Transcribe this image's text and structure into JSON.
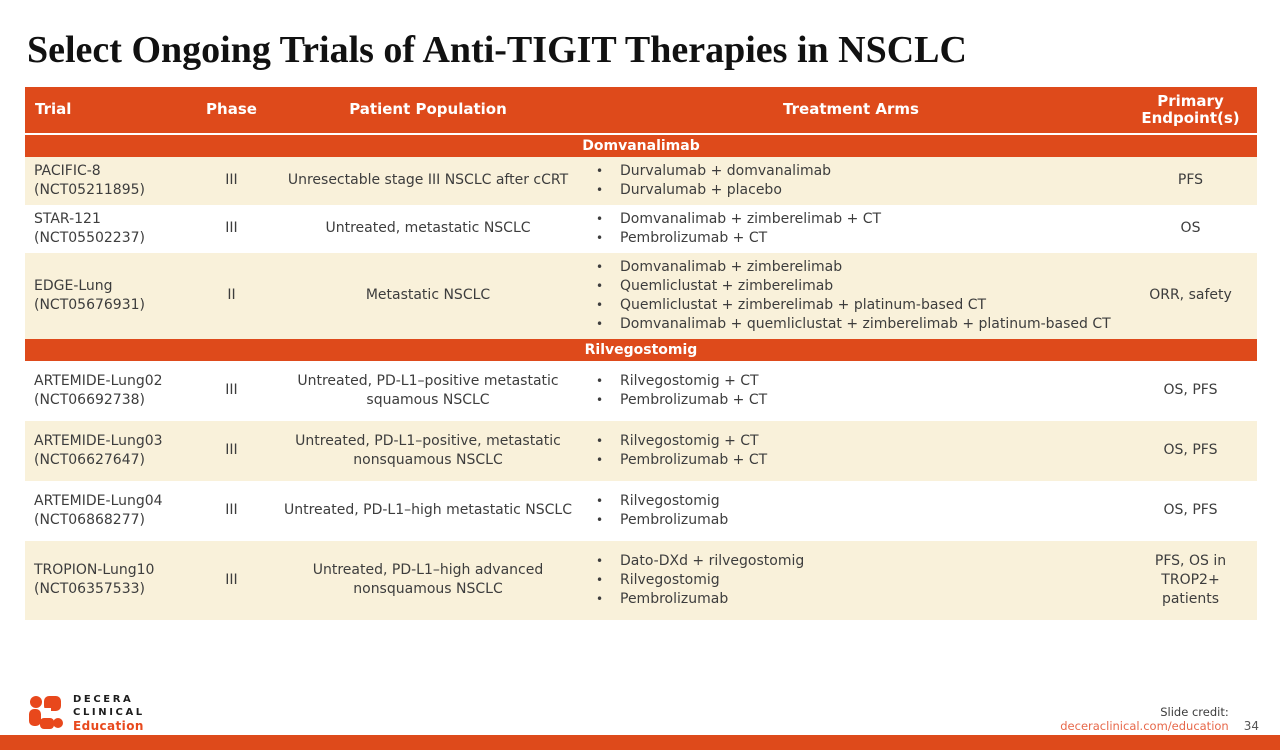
{
  "title": "Select Ongoing Trials of Anti-TIGIT Therapies in NSCLC",
  "colors": {
    "accent_orange": "#de4a1b",
    "row_shade_cream": "#f9f1da",
    "body_text": "#3d3d3d",
    "link_orange": "#e7684a"
  },
  "table": {
    "columns": [
      "Trial",
      "Phase",
      "Patient Population",
      "Treatment Arms",
      "Primary Endpoint(s)"
    ],
    "sections": [
      {
        "label": "Domvanalimab",
        "rows": [
          {
            "trial": "PACIFIC-8",
            "nct": "(NCT05211895)",
            "phase": "III",
            "population": "Unresectable stage III NSCLC after cCRT",
            "arms": [
              "Durvalumab + domvanalimab",
              "Durvalumab + placebo"
            ],
            "endpoints": "PFS"
          },
          {
            "trial": "STAR-121",
            "nct": "(NCT05502237)",
            "phase": "III",
            "population": "Untreated, metastatic NSCLC",
            "arms": [
              "Domvanalimab + zimberelimab + CT",
              "Pembrolizumab + CT"
            ],
            "endpoints": "OS"
          },
          {
            "trial": "EDGE-Lung",
            "nct": "(NCT05676931)",
            "phase": "II",
            "population": "Metastatic NSCLC",
            "arms": [
              "Domvanalimab + zimberelimab",
              "Quemliclustat + zimberelimab",
              "Quemliclustat + zimberelimab + platinum-based CT",
              "Domvanalimab + quemliclustat + zimberelimab + platinum-based CT"
            ],
            "endpoints": "ORR, safety"
          }
        ]
      },
      {
        "label": "Rilvegostomig",
        "rows": [
          {
            "trial": "ARTEMIDE-Lung02",
            "nct": "(NCT06692738)",
            "phase": "III",
            "population": "Untreated, PD-L1–positive metastatic squamous NSCLC",
            "arms": [
              "Rilvegostomig + CT",
              "Pembrolizumab + CT"
            ],
            "endpoints": "OS, PFS"
          },
          {
            "trial": "ARTEMIDE-Lung03",
            "nct": "(NCT06627647)",
            "phase": "III",
            "population": "Untreated, PD-L1–positive, metastatic nonsquamous NSCLC",
            "arms": [
              "Rilvegostomig + CT",
              "Pembrolizumab + CT"
            ],
            "endpoints": "OS, PFS"
          },
          {
            "trial": "ARTEMIDE-Lung04",
            "nct": "(NCT06868277)",
            "phase": "III",
            "population": "Untreated, PD-L1–high metastatic NSCLC",
            "arms": [
              "Rilvegostomig",
              "Pembrolizumab"
            ],
            "endpoints": "OS, PFS"
          },
          {
            "trial": "TROPION-Lung10",
            "nct": "(NCT06357533)",
            "phase": "III",
            "population": "Untreated, PD-L1–high advanced nonsquamous NSCLC",
            "arms": [
              "Dato-DXd + rilvegostomig",
              "Rilvegostomig",
              "Pembrolizumab"
            ],
            "endpoints": "PFS, OS in TROP2+ patients"
          }
        ]
      }
    ]
  },
  "footer": {
    "brand_line1": "DECERA",
    "brand_line2": "CLINICAL",
    "brand_line3": "Education",
    "credit_label": "Slide credit:",
    "credit_link": "deceraclinical.com/education",
    "page_number": "34"
  }
}
